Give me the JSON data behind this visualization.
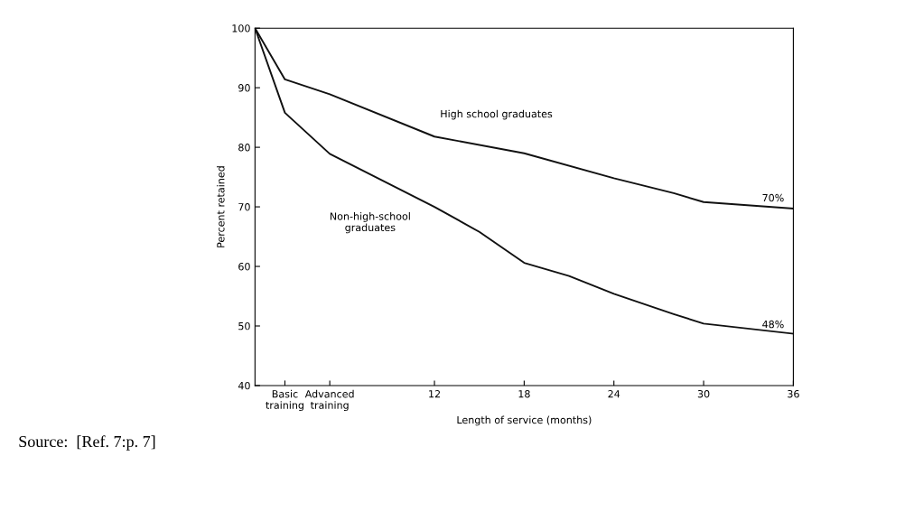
{
  "chart_data": {
    "type": "line",
    "xlabel": "Length of service (months)",
    "ylabel": "Percent retained",
    "xlim": [
      0,
      36
    ],
    "ylim": [
      40,
      100
    ],
    "xticks": [
      {
        "value": 2,
        "label": "Basic\ntraining"
      },
      {
        "value": 5,
        "label": "Advanced\ntraining"
      },
      12,
      18,
      24,
      30,
      36
    ],
    "yticks": [
      40,
      50,
      60,
      70,
      80,
      90,
      100
    ],
    "marker": "none",
    "line_style": "solid",
    "series": [
      {
        "color": "#111111",
        "x": [
          0,
          2,
          5,
          12,
          18,
          24,
          28,
          30,
          36
        ],
        "values": [
          100,
          91.4,
          88.9,
          81.8,
          79.0,
          74.8,
          72.3,
          70.8,
          69.7
        ]
      },
      {
        "color": "#111111",
        "x": [
          0,
          2,
          5,
          12,
          15,
          18,
          21,
          24,
          28,
          30,
          36
        ],
        "values": [
          100,
          85.8,
          78.9,
          70.0,
          65.8,
          60.6,
          58.4,
          55.4,
          52.0,
          50.4,
          48.7
        ]
      }
    ],
    "annotations": [
      "High school graduates",
      "Non-high-school\ngraduates",
      "70%",
      "48%",
      "Source:  [Ref. 7:p. 7]"
    ]
  }
}
